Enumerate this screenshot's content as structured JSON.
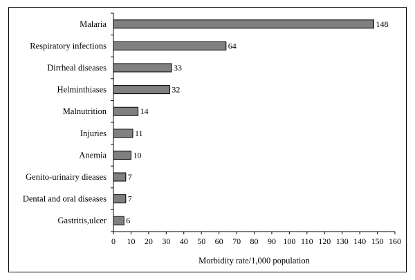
{
  "chart_data": {
    "type": "bar",
    "orientation": "horizontal",
    "categories": [
      "Malaria",
      "Respiratory infections",
      "Dirrheal diseases",
      "Helminthiases",
      "Malnutrition",
      "Injuries",
      "Anemia",
      "Genito-urinairy dieases",
      "Dental and oral diseases",
      "Gastritis,ulcer"
    ],
    "values": [
      148,
      64,
      33,
      32,
      14,
      11,
      10,
      7,
      7,
      6
    ],
    "value_labels": [
      "148",
      "64",
      "33",
      "32",
      "14",
      "11",
      "10",
      "7",
      "7",
      "6"
    ],
    "xlabel": "Morbidity rate/1,000 population",
    "xlim": [
      0,
      160
    ],
    "xticks": [
      "0",
      "10",
      "20",
      "30",
      "40",
      "50",
      "60",
      "70",
      "80",
      "90",
      "100",
      "110",
      "120",
      "130",
      "140",
      "150",
      "160"
    ],
    "bar_color": "#808080",
    "grid": false,
    "legend": "none"
  }
}
